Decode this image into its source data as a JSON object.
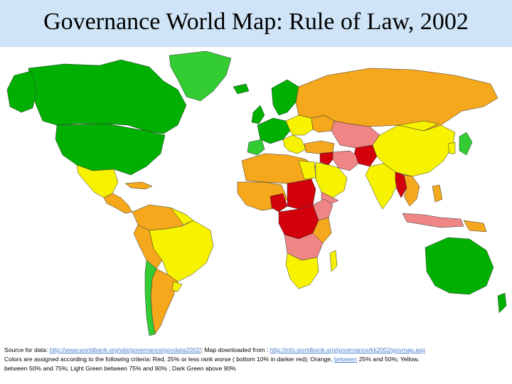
{
  "title": "Governance World Map: Rule of Law, 2002",
  "legend_colors": {
    "red": "#d2000a",
    "pink": "#ef8585",
    "orange": "#f6a81c",
    "yellow": "#f7f300",
    "light_green": "#33cc33",
    "dark_green": "#00b000"
  },
  "caption": {
    "line1_prefix": "Source for data: ",
    "line1_link1": "http://www.worldbank.org/wbi/governance/govdata2002/",
    "line1_middle": "; Map downloaded  from : ",
    "line1_link2": "http://info.worldbank.org/governance/kk2002/govmap.asp",
    "line2_prefix": "Colors are assigned according to the following criteria:  Red, 25% or less rank worse ( bottom 10% in darker red); Orange, ",
    "line2_link": "between",
    "line2_suffix": " 25% and 50%; Yellow,",
    "line3": "between 50% and 75%; Light  Green between 75% and 90% ; Dark Green above 90%"
  }
}
